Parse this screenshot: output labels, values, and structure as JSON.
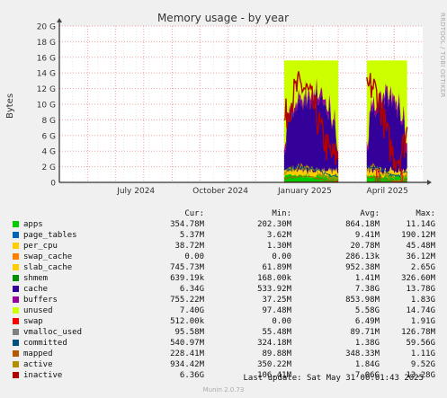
{
  "chart_data": {
    "type": "area",
    "title": "Memory usage - by year",
    "ylabel": "Bytes",
    "ylim": [
      0,
      20
    ],
    "y_ticks": [
      "0",
      "2 G",
      "4 G",
      "6 G",
      "8 G",
      "10 G",
      "12 G",
      "14 G",
      "16 G",
      "18 G",
      "20 G"
    ],
    "x_ticks": [
      "July 2024",
      "October 2024",
      "January 2025",
      "April 2025"
    ],
    "grid": true,
    "stacked": true,
    "x_start": "2024-05-01",
    "x_end": "2025-06-01",
    "data_segments": [
      [
        "2025-01-01",
        "2025-03-01"
      ],
      [
        "2025-04-01",
        "2025-05-15"
      ]
    ],
    "columns": [
      "Cur:",
      "Min:",
      "Avg:",
      "Max:"
    ],
    "series": [
      {
        "name": "apps",
        "color": "#00cc00",
        "cur": "354.78M",
        "min": "202.30M",
        "avg": "864.18M",
        "max": "11.14G"
      },
      {
        "name": "page_tables",
        "color": "#0066b3",
        "cur": "5.37M",
        "min": "3.62M",
        "avg": "9.41M",
        "max": "190.12M"
      },
      {
        "name": "per_cpu",
        "color": "#ffcc00",
        "cur": "38.72M",
        "min": "1.30M",
        "avg": "20.78M",
        "max": "45.48M"
      },
      {
        "name": "swap_cache",
        "color": "#ff8000",
        "cur": "0.00",
        "min": "0.00",
        "avg": "286.13k",
        "max": "36.12M"
      },
      {
        "name": "slab_cache",
        "color": "#ffcc00",
        "cur": "745.73M",
        "min": "61.89M",
        "avg": "952.38M",
        "max": "2.65G"
      },
      {
        "name": "shmem",
        "color": "#008f00",
        "cur": "639.19k",
        "min": "168.00k",
        "avg": "1.41M",
        "max": "326.60M"
      },
      {
        "name": "cache",
        "color": "#330099",
        "cur": "6.34G",
        "min": "533.92M",
        "avg": "7.38G",
        "max": "13.78G"
      },
      {
        "name": "buffers",
        "color": "#990099",
        "cur": "755.22M",
        "min": "37.25M",
        "avg": "853.98M",
        "max": "1.83G"
      },
      {
        "name": "unused",
        "color": "#ccff00",
        "cur": "7.40G",
        "min": "97.48M",
        "avg": "5.58G",
        "max": "14.74G"
      },
      {
        "name": "swap",
        "color": "#ff0000",
        "cur": "512.00k",
        "min": "0.00",
        "avg": "6.49M",
        "max": "1.91G"
      },
      {
        "name": "vmalloc_used",
        "color": "#808080",
        "cur": "95.58M",
        "min": "55.48M",
        "avg": "89.71M",
        "max": "126.78M"
      },
      {
        "name": "committed",
        "color": "#005080",
        "cur": "540.97M",
        "min": "324.18M",
        "avg": "1.38G",
        "max": "59.56G"
      },
      {
        "name": "mapped",
        "color": "#b35a00",
        "cur": "228.41M",
        "min": "89.88M",
        "avg": "348.33M",
        "max": "1.11G"
      },
      {
        "name": "active",
        "color": "#b38f00",
        "cur": "934.42M",
        "min": "350.22M",
        "avg": "1.84G",
        "max": "9.52G"
      },
      {
        "name": "inactive",
        "color": "#b30000",
        "cur": "6.36G",
        "min": "106.41M",
        "avg": "7.06G",
        "max": "13.28G"
      }
    ]
  },
  "last_update": "Last update: Sat May 31 00:01:43 2025",
  "footer": "Munin 2.0.73",
  "side_label": "RRDTOOL / TOBI OETIKER"
}
